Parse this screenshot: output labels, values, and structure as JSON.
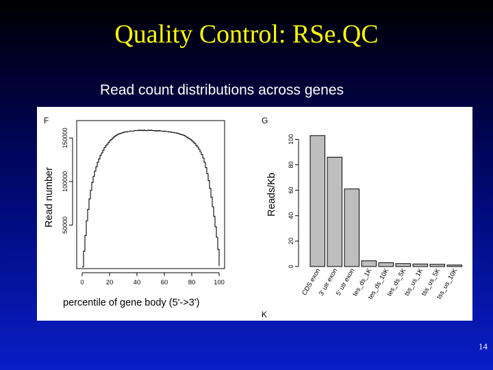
{
  "slide": {
    "title": "Quality Control: RSe.QC",
    "subtitle": "Read count distributions across genes",
    "page_number": "14"
  },
  "colors": {
    "title": "#ffff00",
    "bar_fill": "#bebebe",
    "line": "#000000"
  },
  "chart_data": [
    {
      "type": "line",
      "panel_label": "F",
      "xlabel": "percentile of gene body (5'->3')",
      "ylabel": "Read number",
      "xticks": [
        0,
        20,
        40,
        60,
        80,
        100
      ],
      "yticks": [
        50000,
        100000,
        150000
      ],
      "xlim": [
        -4,
        104
      ],
      "ylim": [
        0,
        170000
      ],
      "x": [
        0,
        1,
        2,
        3,
        4,
        5,
        6,
        7,
        8,
        9,
        10,
        11,
        12,
        13,
        14,
        15,
        16,
        17,
        18,
        19,
        20,
        21,
        22,
        23,
        24,
        25,
        26,
        27,
        28,
        29,
        30,
        31,
        32,
        33,
        34,
        35,
        36,
        37,
        38,
        39,
        40,
        41,
        42,
        43,
        44,
        45,
        46,
        47,
        48,
        49,
        50,
        51,
        52,
        53,
        54,
        55,
        56,
        57,
        58,
        59,
        60,
        61,
        62,
        63,
        64,
        65,
        66,
        67,
        68,
        69,
        70,
        71,
        72,
        73,
        74,
        75,
        76,
        77,
        78,
        79,
        80,
        81,
        82,
        83,
        84,
        85,
        86,
        87,
        88,
        89,
        90,
        91,
        92,
        93,
        94,
        95,
        96,
        97,
        98,
        99,
        100
      ],
      "y": [
        2000,
        20000,
        38000,
        55000,
        68000,
        80000,
        90000,
        99000,
        106000,
        112000,
        117000,
        122000,
        126000,
        130000,
        133000,
        136000,
        139000,
        141000,
        143000,
        145000,
        147000,
        148500,
        150000,
        151500,
        152500,
        153500,
        154500,
        155000,
        155500,
        156000,
        156500,
        157000,
        157000,
        157500,
        157500,
        158000,
        158000,
        158000,
        158500,
        158500,
        158500,
        159000,
        158500,
        159000,
        158500,
        159000,
        158500,
        158500,
        159000,
        158500,
        159000,
        158500,
        158500,
        158000,
        158500,
        158000,
        158500,
        158000,
        158000,
        157500,
        158000,
        157500,
        157500,
        157000,
        157000,
        156500,
        156500,
        156000,
        156000,
        155500,
        155000,
        154500,
        154000,
        153500,
        153000,
        152000,
        151000,
        150000,
        149000,
        148000,
        146500,
        145000,
        143500,
        141500,
        139500,
        137000,
        134000,
        131000,
        127000,
        122000,
        116000,
        109000,
        101000,
        92000,
        82000,
        71000,
        60000,
        48000,
        36000,
        22000,
        3000
      ]
    },
    {
      "type": "bar",
      "panel_label": "G",
      "extra_label": "K",
      "xlabel": "",
      "ylabel": "Reads/Kb",
      "categories": [
        "CDS exon",
        "3' utr exon",
        "5' utr exon",
        "tes_ds_1K",
        "tes_ds_10K",
        "tes_ds_5K",
        "tss_us_1K",
        "tss_us_5K",
        "tss_us_10K"
      ],
      "values": [
        103,
        86,
        61,
        4.5,
        3,
        2.3,
        2,
        1.8,
        1.2
      ],
      "yticks": [
        0,
        20,
        40,
        60,
        80,
        100
      ],
      "ylim": [
        0,
        104
      ]
    }
  ]
}
